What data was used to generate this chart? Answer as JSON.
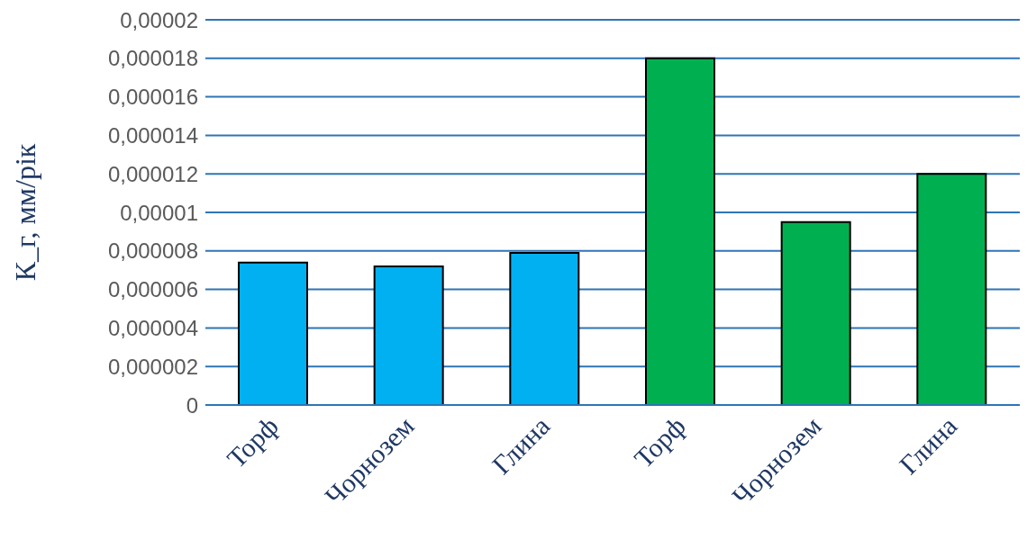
{
  "chart_data": {
    "type": "bar",
    "ylabel": "К_г, мм/рік",
    "categories": [
      "Торф",
      "Чорнозем",
      "Глина",
      "Торф",
      "Чорнозем",
      "Глина"
    ],
    "values": [
      7.4e-06,
      7.2e-06,
      7.9e-06,
      1.8e-05,
      9.5e-06,
      1.2e-05
    ],
    "colors": [
      "#00b0f0",
      "#00b0f0",
      "#00b0f0",
      "#00b050",
      "#00b050",
      "#00b050"
    ],
    "ylim": [
      0,
      2e-05
    ],
    "yticks": [
      {
        "value": 0,
        "label": "0"
      },
      {
        "value": 2e-06,
        "label": "0,000002"
      },
      {
        "value": 4e-06,
        "label": "0,000004"
      },
      {
        "value": 6e-06,
        "label": "0,000006"
      },
      {
        "value": 8e-06,
        "label": "0,000008"
      },
      {
        "value": 1e-05,
        "label": "0,00001"
      },
      {
        "value": 1.2e-05,
        "label": "0,000012"
      },
      {
        "value": 1.4e-05,
        "label": "0,000014"
      },
      {
        "value": 1.6e-05,
        "label": "0,000016"
      },
      {
        "value": 1.8e-05,
        "label": "0,000018"
      },
      {
        "value": 2e-05,
        "label": "0,00002"
      }
    ],
    "grid": "y"
  }
}
